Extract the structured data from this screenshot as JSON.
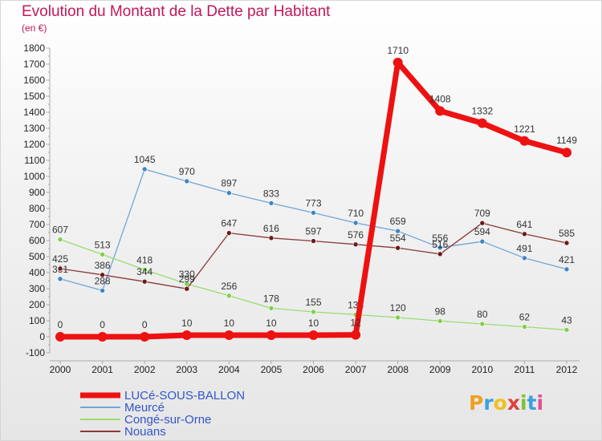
{
  "header": {
    "title": "Evolution du Montant de la Dette par Habitant",
    "subtitle": "(en €)"
  },
  "logo": {
    "text": "Proxiti"
  },
  "colors": {
    "title": "#c2185b",
    "axis": "#aaaaaa",
    "grid": "#c8c8c8"
  },
  "chart_data": {
    "type": "line",
    "title": "Evolution du Montant de la Dette par Habitant",
    "subtitle": "(en €)",
    "xlabel": "",
    "ylabel": "",
    "x": [
      "2000",
      "2001",
      "2002",
      "2003",
      "2004",
      "2005",
      "2006",
      "2007",
      "2008",
      "2009",
      "2010",
      "2011",
      "2012"
    ],
    "ylim": [
      -100,
      1800
    ],
    "yticks": [
      -100,
      0,
      100,
      200,
      300,
      400,
      500,
      600,
      700,
      800,
      900,
      1000,
      1100,
      1200,
      1300,
      1400,
      1500,
      1600,
      1700,
      1800
    ],
    "grid": false,
    "legend": "bottom-left",
    "series": [
      {
        "name": "LUCé-SOUS-BALLON",
        "color": "#ee1111",
        "marker": "#ee1111",
        "values": [
          0,
          0,
          0,
          10,
          10,
          10,
          10,
          12,
          1710,
          1408,
          1332,
          1221,
          1149
        ]
      },
      {
        "name": "Meurcé",
        "color": "#6fa6d8",
        "marker": "#3f86c6",
        "values": [
          361,
          288,
          1045,
          970,
          897,
          833,
          773,
          710,
          659,
          556,
          594,
          491,
          421
        ]
      },
      {
        "name": "Congé-sur-Orne",
        "color": "#98dd6e",
        "marker": "#80d048",
        "values": [
          607,
          513,
          418,
          330,
          256,
          178,
          155,
          138,
          120,
          98,
          80,
          62,
          43
        ]
      },
      {
        "name": "Nouans",
        "color": "#8b3a3a",
        "marker": "#6b1a1a",
        "values": [
          425,
          386,
          344,
          299,
          647,
          616,
          597,
          576,
          554,
          516,
          709,
          641,
          585
        ]
      }
    ]
  }
}
